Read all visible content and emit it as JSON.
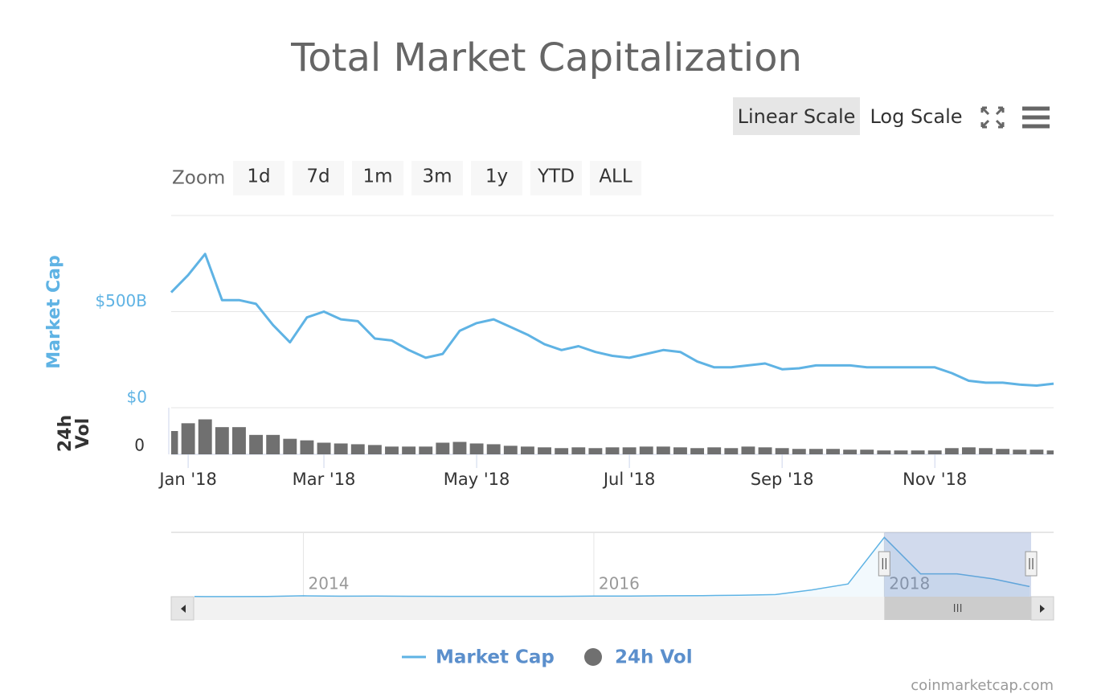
{
  "chart_data": [
    {
      "type": "line",
      "title": "Total Market Capitalization",
      "ylabel": "Market Cap",
      "y2label": "24h Vol",
      "categories": [
        null,
        "Jan '18",
        null,
        null,
        null,
        null,
        null,
        null,
        null,
        "Mar '18",
        null,
        null,
        null,
        null,
        null,
        null,
        null,
        null,
        "May '18",
        null,
        null,
        null,
        null,
        null,
        null,
        null,
        null,
        "Jul '18",
        null,
        null,
        null,
        null,
        null,
        null,
        null,
        null,
        "Sep '18",
        null,
        null,
        null,
        null,
        null,
        null,
        null,
        null,
        "Nov '18",
        null,
        null,
        null,
        null,
        null,
        null,
        null
      ],
      "ylim": [
        0,
        1000000000000.0
      ],
      "yticks": [
        {
          "value": 0,
          "label": "$0"
        },
        {
          "value": 500000000000.0,
          "label": "$500B"
        }
      ],
      "y2lim": [
        0,
        60000000000.0
      ],
      "y2ticks": [
        0
      ],
      "grid": true,
      "series": [
        {
          "name": "Market Cap",
          "color": "#5fb3e4",
          "values": [
            600000000000.0,
            690000000000.0,
            800000000000.0,
            560000000000.0,
            560000000000.0,
            540000000000.0,
            430000000000.0,
            340000000000.0,
            470000000000.0,
            500000000000.0,
            460000000000.0,
            450000000000.0,
            360000000000.0,
            350000000000.0,
            300000000000.0,
            260000000000.0,
            280000000000.0,
            400000000000.0,
            440000000000.0,
            460000000000.0,
            420000000000.0,
            380000000000.0,
            330000000000.0,
            300000000000.0,
            320000000000.0,
            290000000000.0,
            270000000000.0,
            260000000000.0,
            280000000000.0,
            300000000000.0,
            290000000000.0,
            240000000000.0,
            210000000000.0,
            210000000000.0,
            220000000000.0,
            230000000000.0,
            200000000000.0,
            205000000000.0,
            220000000000.0,
            220000000000.0,
            220000000000.0,
            210000000000.0,
            210000000000.0,
            210000000000.0,
            210000000000.0,
            210000000000.0,
            180000000000.0,
            140000000000.0,
            130000000000.0,
            130000000000.0,
            120000000000.0,
            115000000000.0,
            125000000000.0
          ]
        },
        {
          "name": "24h Vol",
          "color": "#707070",
          "type": "column",
          "axis": "y2",
          "values": [
            30000000000.0,
            40000000000.0,
            45000000000.0,
            35000000000.0,
            35000000000.0,
            25000000000.0,
            25000000000.0,
            20000000000.0,
            18000000000.0,
            15000000000.0,
            14000000000.0,
            13000000000.0,
            12000000000.0,
            10000000000.0,
            10000000000.0,
            10000000000.0,
            15000000000.0,
            16000000000.0,
            14000000000.0,
            13000000000.0,
            11000000000.0,
            10000000000.0,
            9000000000.0,
            8000000000.0,
            9000000000.0,
            8000000000.0,
            9000000000.0,
            9000000000.0,
            10000000000.0,
            10000000000.0,
            9000000000.0,
            8000000000.0,
            9000000000.0,
            8000000000.0,
            10000000000.0,
            9000000000.0,
            8000000000.0,
            7000000000.0,
            7000000000.0,
            7000000000.0,
            6000000000.0,
            6000000000.0,
            5000000000.0,
            5000000000.0,
            5000000000.0,
            5000000000.0,
            8000000000.0,
            9000000000.0,
            8000000000.0,
            7000000000.0,
            6000000000.0,
            6000000000.0,
            5000000000.0
          ]
        }
      ],
      "legend": "bottom"
    },
    {
      "type": "area",
      "color": "#5fb3e4",
      "categories": [
        null,
        null,
        null,
        "2014",
        null,
        null,
        null,
        null,
        null,
        null,
        null,
        "2016",
        null,
        null,
        null,
        null,
        null,
        null,
        null,
        "2018",
        null,
        null,
        null,
        null
      ],
      "values": [
        1500000000.0,
        1200000000.0,
        2000000000.0,
        10000000000.0,
        6000000000.0,
        7000000000.0,
        5000000000.0,
        4000000000.0,
        3500000000.0,
        4000000000.0,
        3500000000.0,
        7000000000.0,
        8000000000.0,
        10000000000.0,
        12000000000.0,
        17000000000.0,
        25000000000.0,
        80000000000.0,
        150000000000.0,
        700000000000.0,
        270000000000.0,
        270000000000.0,
        210000000000.0,
        120000000000.0
      ],
      "ylim": [
        0,
        760000000000.0
      ]
    }
  ],
  "ui": {
    "scale_buttons": [
      "Linear Scale",
      "Log Scale"
    ],
    "zoom_label": "Zoom",
    "zoom_buttons": [
      "1d",
      "7d",
      "1m",
      "3m",
      "1y",
      "YTD",
      "ALL"
    ]
  },
  "credits": "coinmarketcap.com"
}
